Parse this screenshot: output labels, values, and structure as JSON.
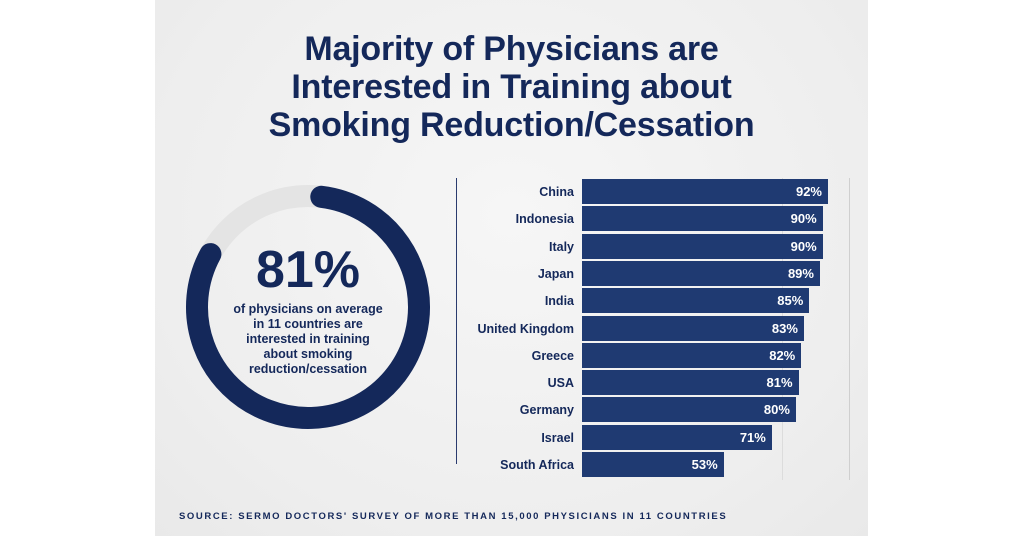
{
  "chart_data": {
    "type": "bar",
    "orientation": "horizontal",
    "title": [
      "Majority of Physicians are",
      "Interested in Training about",
      "Smoking Reduction/Cessation"
    ],
    "categories": [
      "China",
      "Indonesia",
      "Italy",
      "Japan",
      "India",
      "United Kingdom",
      "Greece",
      "USA",
      "Germany",
      "Israel",
      "South Africa"
    ],
    "values": [
      92,
      90,
      90,
      89,
      85,
      83,
      82,
      81,
      80,
      71,
      53
    ],
    "value_labels": [
      "92%",
      "90%",
      "90%",
      "89%",
      "85%",
      "83%",
      "82%",
      "81%",
      "80%",
      "71%",
      "53%"
    ],
    "xlim": [
      0,
      100
    ],
    "unit": "%",
    "bar_color": "#1f3a72",
    "summary": {
      "type": "donut",
      "value": 81,
      "value_label": "81%",
      "caption": [
        "of physicians on average",
        "in 11 countries are",
        "interested in training",
        "about smoking",
        "reduction/cessation"
      ],
      "fill_color": "#14285a",
      "track_color": "#e4e4e4"
    },
    "source": "SOURCE: SERMO DOCTORS' SURVEY OF MORE THAN 15,000 PHYSICIANS IN 11 COUNTRIES"
  },
  "colors": {
    "navy": "#14285a",
    "background": "#eeeeee"
  }
}
